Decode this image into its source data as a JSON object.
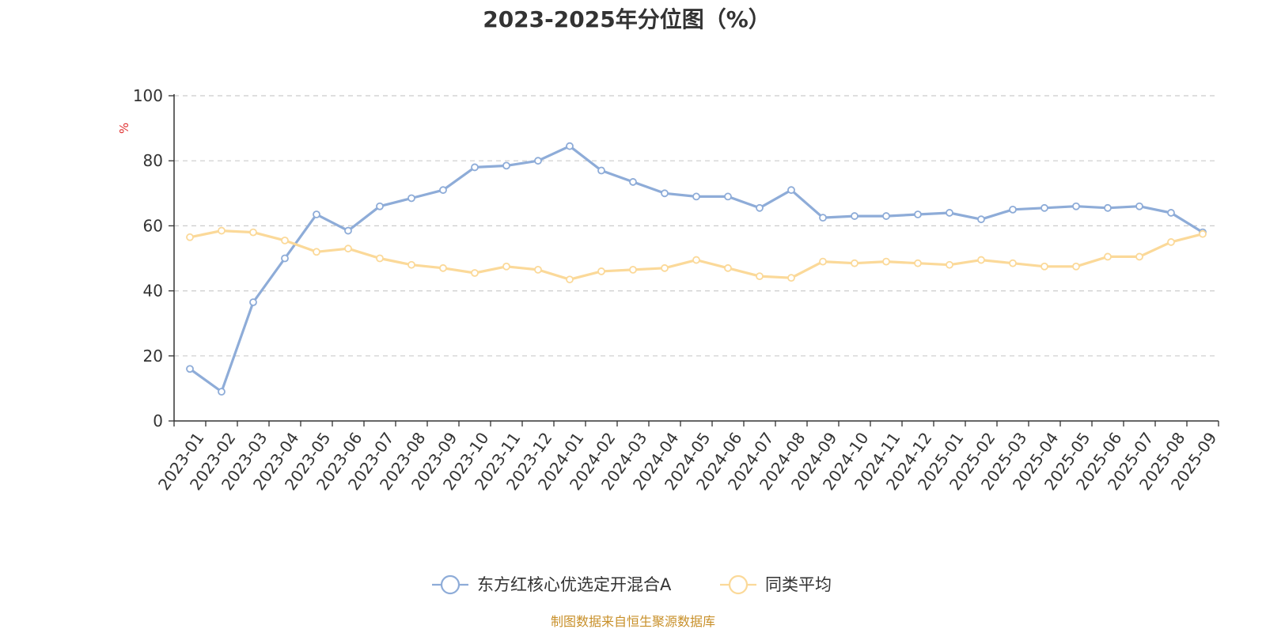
{
  "chart_data": {
    "type": "line",
    "title": "2023-2025年分位图（%）",
    "ylabel": "%",
    "ylim": [
      0,
      100
    ],
    "yticks": [
      0,
      20,
      40,
      60,
      80,
      100
    ],
    "grid": "horizontal-dashed",
    "legend_position": "bottom-center",
    "categories": [
      "2023-01",
      "2023-02",
      "2023-03",
      "2023-04",
      "2023-05",
      "2023-06",
      "2023-07",
      "2023-08",
      "2023-09",
      "2023-10",
      "2023-11",
      "2023-12",
      "2024-01",
      "2024-02",
      "2024-03",
      "2024-04",
      "2024-05",
      "2024-06",
      "2024-07",
      "2024-08",
      "2024-09",
      "2024-10",
      "2024-11",
      "2024-12",
      "2025-01",
      "2025-02",
      "2025-03",
      "2025-04",
      "2025-05",
      "2025-06",
      "2025-07",
      "2025-08",
      "2025-09"
    ],
    "series": [
      {
        "name": "东方红核心优选定开混合A",
        "color": "#8eacd8",
        "values": [
          16,
          9,
          36.5,
          50,
          63.5,
          58.5,
          66,
          68.5,
          71,
          78,
          78.5,
          80,
          84.5,
          77,
          73.5,
          70,
          69,
          69,
          65.5,
          71,
          62.5,
          63,
          63,
          63.5,
          64,
          62,
          65,
          65.5,
          66,
          65.5,
          66,
          64,
          58
        ]
      },
      {
        "name": "同类平均",
        "color": "#fbd999",
        "values": [
          56.5,
          58.5,
          58,
          55.5,
          52,
          53,
          50,
          48,
          47,
          45.5,
          47.5,
          46.5,
          43.5,
          46,
          46.5,
          47,
          49.5,
          47,
          44.5,
          44,
          49,
          48.5,
          49,
          48.5,
          48,
          49.5,
          48.5,
          47.5,
          47.5,
          50.5,
          50.5,
          55,
          57.5
        ]
      }
    ]
  },
  "footer": {
    "source": "制图数据来自恒生聚源数据库"
  }
}
